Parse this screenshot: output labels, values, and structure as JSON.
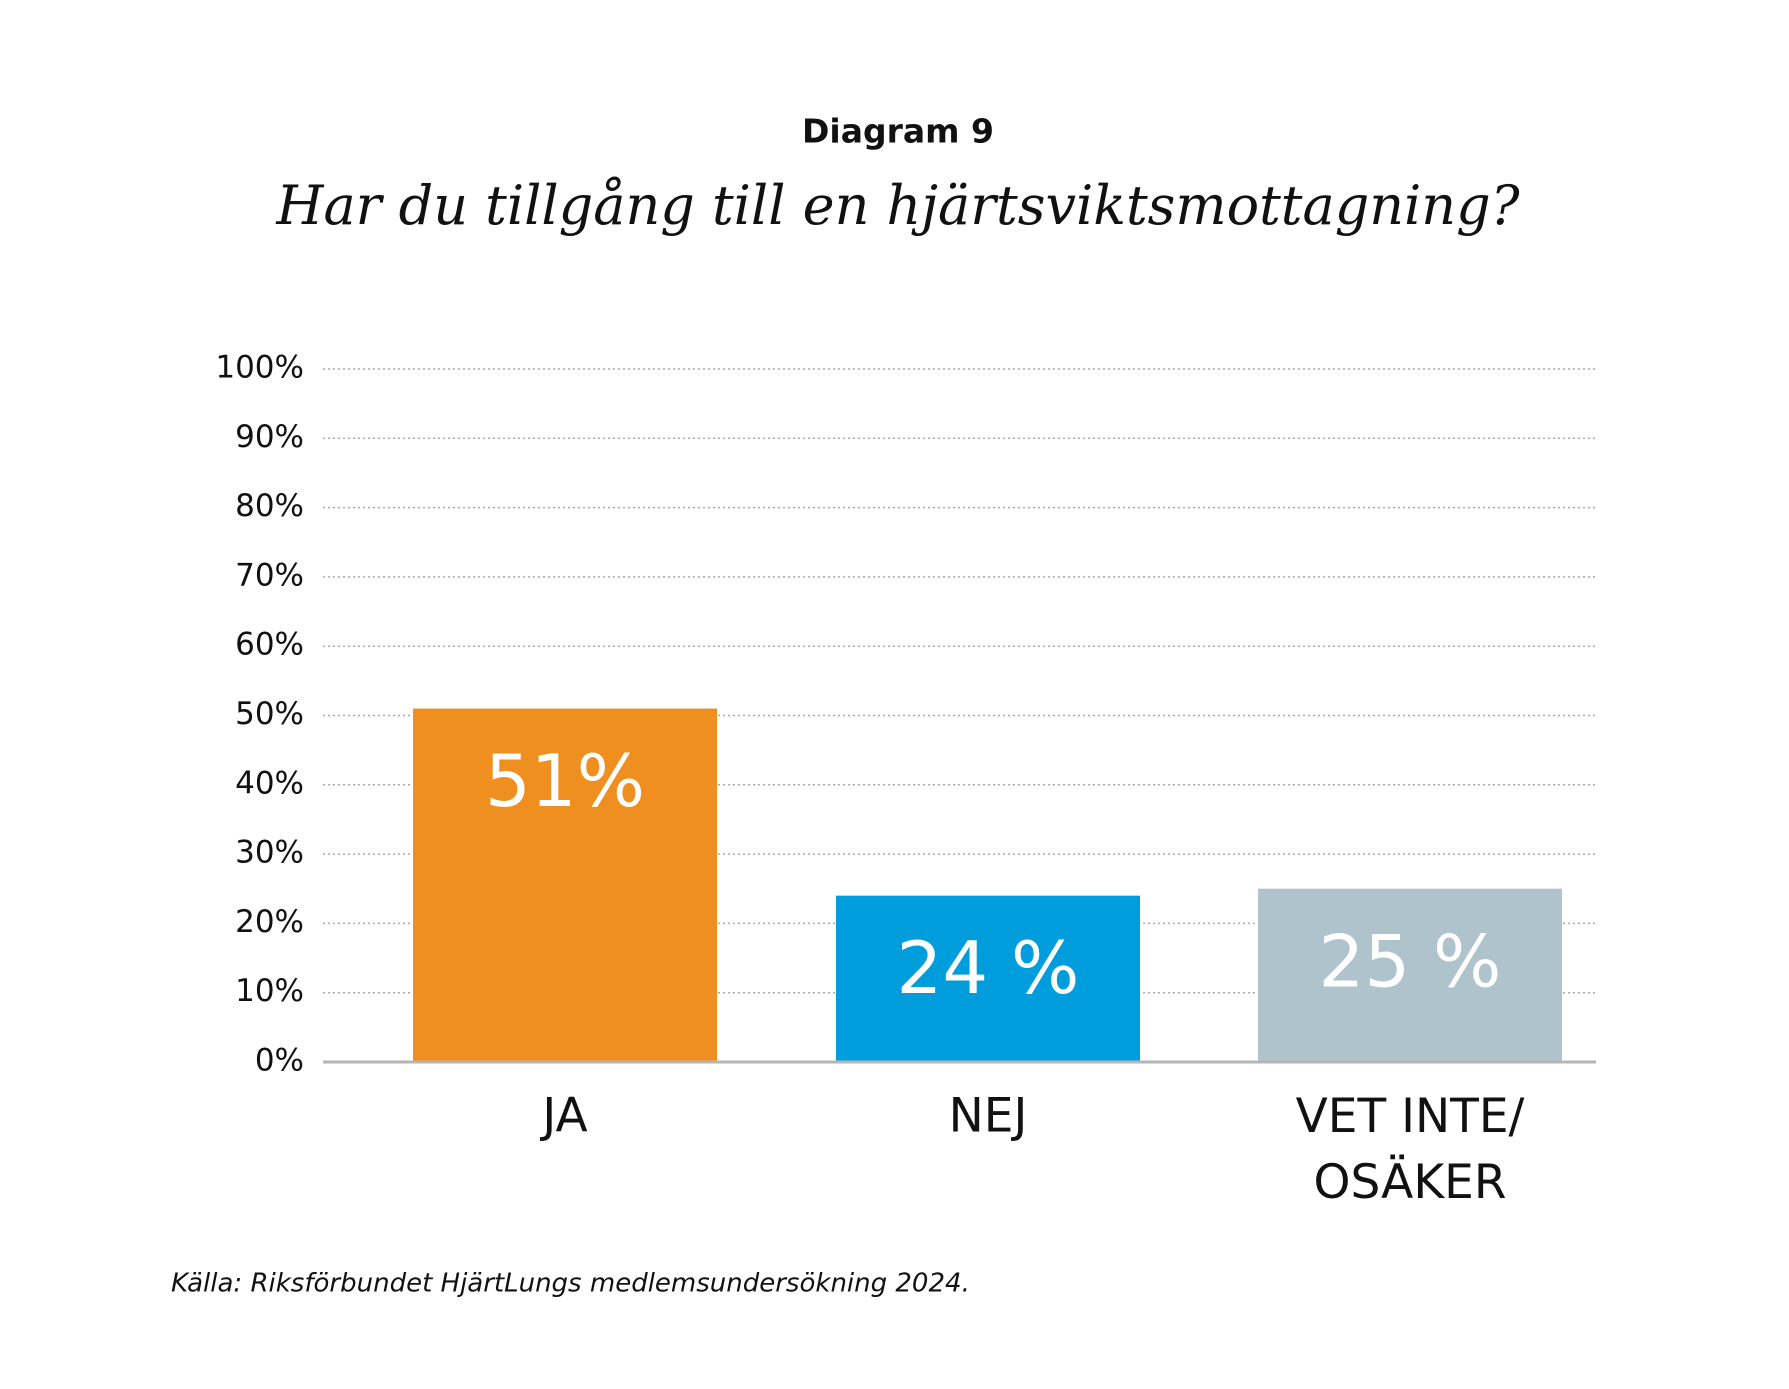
{
  "chart_data": {
    "type": "bar",
    "title": "Diagram 9",
    "subtitle": "Har du tillgång till en hjärtsviktsmottagning?",
    "categories": [
      "JA",
      "NEJ",
      "VET INTE/ OSÄKER"
    ],
    "values": [
      51,
      24,
      25
    ],
    "value_labels": [
      "51%",
      "24 %",
      "25 %"
    ],
    "colors": [
      "#ef8f20",
      "#009ddc",
      "#aec3cb"
    ],
    "ylim": [
      0,
      100
    ],
    "yticks": [
      {
        "value": 0,
        "label": "0%"
      },
      {
        "value": 10,
        "label": "10%"
      },
      {
        "value": 20,
        "label": "20%"
      },
      {
        "value": 30,
        "label": "30%"
      },
      {
        "value": 40,
        "label": "40%"
      },
      {
        "value": 50,
        "label": "50%"
      },
      {
        "value": 60,
        "label": "60%"
      },
      {
        "value": 70,
        "label": "70%"
      },
      {
        "value": 80,
        "label": "80%"
      },
      {
        "value": 90,
        "label": "90%"
      },
      {
        "value": 100,
        "label": "100%"
      }
    ],
    "grid": true,
    "source": "Källa: Riksförbundet HjärtLungs medlemsundersökning 2024."
  }
}
